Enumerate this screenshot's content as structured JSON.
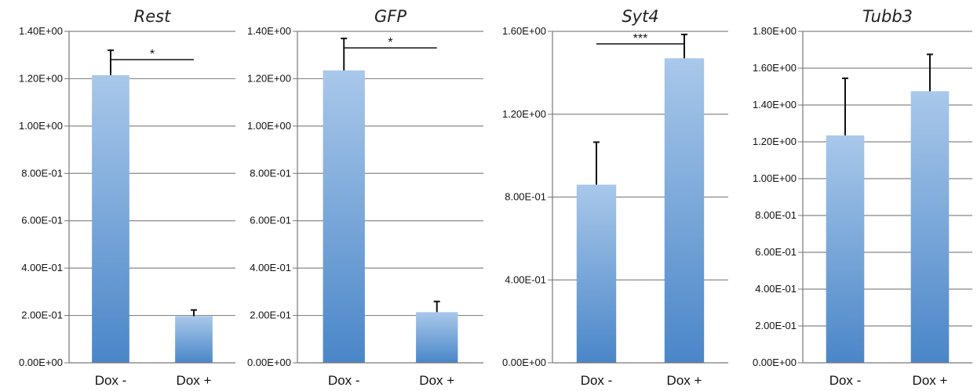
{
  "chart_data": [
    {
      "type": "bar",
      "title": "Rest",
      "categories": [
        "Dox -",
        "Dox +"
      ],
      "values": [
        1.215,
        0.197
      ],
      "error": [
        0.105,
        0.026
      ],
      "ylim": [
        0,
        1.4
      ],
      "yticks": [
        "0.00E+00",
        "2.00E-01",
        "4.00E-01",
        "6.00E-01",
        "8.00E-01",
        "1.00E+00",
        "1.20E+00",
        "1.40E+00"
      ],
      "grid": true,
      "significance": {
        "label": "*",
        "between": [
          0,
          1
        ]
      }
    },
    {
      "type": "bar",
      "title": "GFP",
      "categories": [
        "Dox -",
        "Dox +"
      ],
      "values": [
        1.235,
        0.214
      ],
      "error": [
        0.135,
        0.045
      ],
      "ylim": [
        0,
        1.4
      ],
      "yticks": [
        "0.00E+00",
        "2.00E-01",
        "4.00E-01",
        "6.00E-01",
        "8.00E-01",
        "1.00E+00",
        "1.20E+00",
        "1.40E+00"
      ],
      "grid": true,
      "significance": {
        "label": "*",
        "between": [
          0,
          1
        ]
      }
    },
    {
      "type": "bar",
      "title": "Syt4",
      "categories": [
        "Dox -",
        "Dox +"
      ],
      "values": [
        0.86,
        1.47
      ],
      "error": [
        0.205,
        0.115
      ],
      "ylim": [
        0,
        1.6
      ],
      "yticks": [
        "0.00E+00",
        "4.00E-01",
        "8.00E-01",
        "1.20E+00",
        "1.60E+00"
      ],
      "grid": true,
      "significance": {
        "label": "***",
        "between": [
          0,
          1
        ]
      }
    },
    {
      "type": "bar",
      "title": "Tubb3",
      "categories": [
        "Dox -",
        "Dox +"
      ],
      "values": [
        1.235,
        1.475
      ],
      "error": [
        0.31,
        0.2
      ],
      "ylim": [
        0,
        1.8
      ],
      "yticks": [
        "0.00E+00",
        "2.00E-01",
        "4.00E-01",
        "6.00E-01",
        "8.00E-01",
        "1.00E+00",
        "1.20E+00",
        "1.40E+00",
        "1.60E+00",
        "1.80E+00"
      ],
      "grid": true,
      "significance": null
    }
  ],
  "colors": {
    "bar_top": "#a9c8ea",
    "bar_bottom": "#4a86c8",
    "axis": "#777777",
    "grid": "#888888",
    "error": "#111111"
  }
}
